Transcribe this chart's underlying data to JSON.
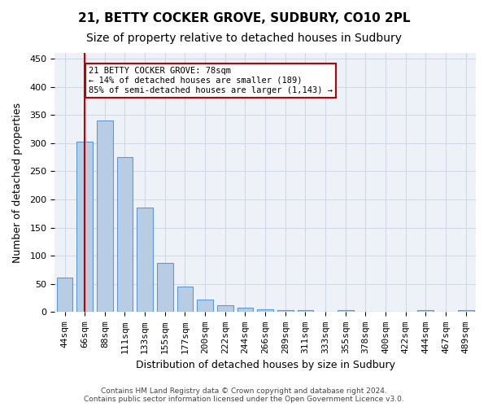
{
  "title1": "21, BETTY COCKER GROVE, SUDBURY, CO10 2PL",
  "title2": "Size of property relative to detached houses in Sudbury",
  "xlabel": "Distribution of detached houses by size in Sudbury",
  "ylabel": "Number of detached properties",
  "categories": [
    "44sqm",
    "66sqm",
    "88sqm",
    "111sqm",
    "133sqm",
    "155sqm",
    "177sqm",
    "200sqm",
    "222sqm",
    "244sqm",
    "266sqm",
    "289sqm",
    "311sqm",
    "333sqm",
    "355sqm",
    "378sqm",
    "400sqm",
    "422sqm",
    "444sqm",
    "467sqm",
    "489sqm"
  ],
  "values": [
    62,
    302,
    340,
    275,
    185,
    88,
    45,
    22,
    12,
    8,
    5,
    3,
    4,
    1,
    4,
    0,
    1,
    0,
    3,
    0,
    3
  ],
  "bar_color": "#b8cce4",
  "bar_edge_color": "#5b9bd5",
  "vline_x": 1,
  "vline_color": "#c00000",
  "annotation_text": "21 BETTY COCKER GROVE: 78sqm\n← 14% of detached houses are smaller (189)\n85% of semi-detached houses are larger (1,143) →",
  "annotation_box_color": "#ffffff",
  "annotation_box_edge": "#c00000",
  "ylim": [
    0,
    460
  ],
  "yticks": [
    0,
    50,
    100,
    150,
    200,
    250,
    300,
    350,
    400,
    450
  ],
  "grid_color": "#d0d8e8",
  "bg_color": "#eef2f8",
  "footnote": "Contains HM Land Registry data © Crown copyright and database right 2024.\nContains public sector information licensed under the Open Government Licence v3.0.",
  "title1_fontsize": 11,
  "title2_fontsize": 10,
  "xlabel_fontsize": 9,
  "ylabel_fontsize": 9,
  "tick_fontsize": 8
}
